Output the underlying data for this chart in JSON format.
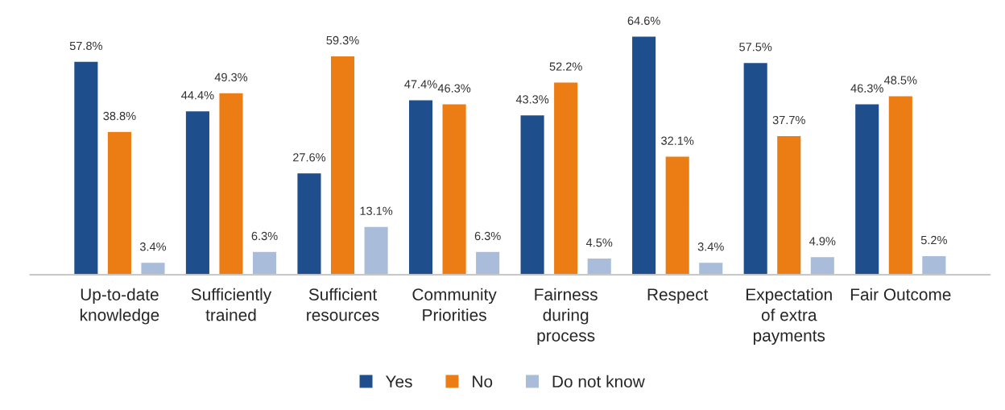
{
  "chart_data": {
    "type": "bar",
    "categories": [
      "Up-to-date\nknowledge",
      "Sufficiently\ntrained",
      "Sufficient\nresources",
      "Community\nPriorities",
      "Fairness\nduring\nprocess",
      "Respect",
      "Expectation\nof extra\npayments",
      "Fair Outcome"
    ],
    "series": [
      {
        "name": "Yes",
        "color": "#1f4e8c",
        "values": [
          57.8,
          44.4,
          27.6,
          47.4,
          43.3,
          64.6,
          57.5,
          46.3
        ],
        "value_labels": [
          "57.8%",
          "44.4%",
          "27.6%",
          "47.4%",
          "43.3%",
          "64.6%",
          "57.5%",
          "46.3%"
        ]
      },
      {
        "name": "No",
        "color": "#ec7c14",
        "values": [
          38.8,
          49.3,
          59.3,
          46.3,
          52.2,
          32.1,
          37.7,
          48.5
        ],
        "value_labels": [
          "38.8%",
          "49.3%",
          "59.3%",
          "46.3%",
          "52.2%",
          "32.1%",
          "37.7%",
          "48.5%"
        ]
      },
      {
        "name": "Do not know",
        "color": "#a9bcd9",
        "values": [
          3.4,
          6.3,
          13.1,
          6.3,
          4.5,
          3.4,
          4.9,
          5.2
        ],
        "value_labels": [
          "3.4%",
          "6.3%",
          "13.1%",
          "6.3%",
          "4.5%",
          "3.4%",
          "4.9%",
          "5.2%"
        ]
      }
    ],
    "legend": "bottom",
    "grid": false
  }
}
